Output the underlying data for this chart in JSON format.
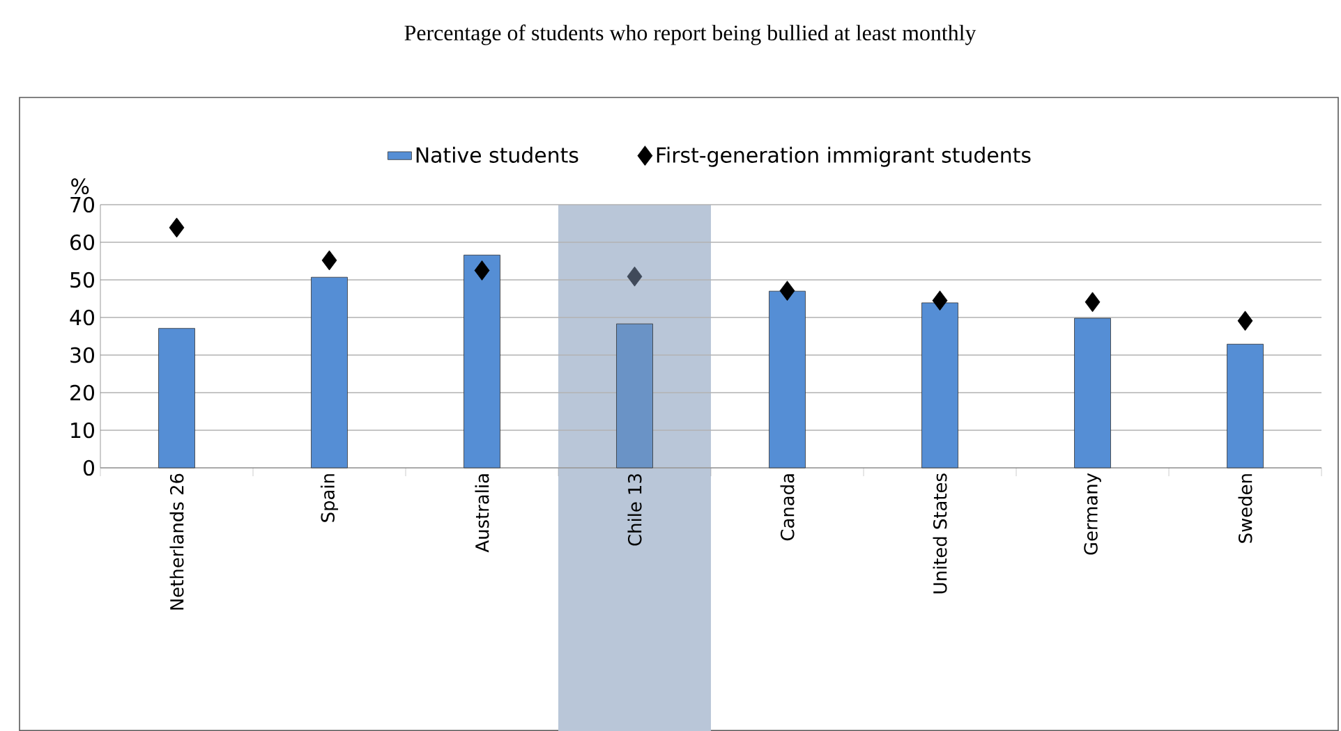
{
  "chart_data": {
    "type": "bar",
    "title": "Percentage of students who report being bullied at least monthly",
    "ylabel": "%",
    "categories": [
      "Netherlands 26",
      "Spain",
      "Australia",
      "Chile 13",
      "Canada",
      "United States",
      "Germany",
      "Sweden"
    ],
    "series": [
      {
        "name": "Native students",
        "color": "#558ed5",
        "colors": [
          "#558ed5",
          "#558ed5",
          "#558ed5",
          "#6a93c6",
          "#558ed5",
          "#558ed5",
          "#558ed5",
          "#558ed5"
        ],
        "values": [
          37.1,
          50.7,
          56.6,
          38.3,
          47,
          43.9,
          39.8,
          32.9
        ]
      },
      {
        "name": "First-generation immigrant students",
        "type": "scatter",
        "marker": "diamond",
        "color": "#000000",
        "colors": [
          "#000000",
          "#000000",
          "#000000",
          "#404a5a",
          "#000000",
          "#000000",
          "#000000",
          "#000000"
        ],
        "values": [
          63.9,
          55.2,
          52.5,
          50.9,
          47.1,
          44.5,
          44.1,
          39.1
        ]
      }
    ],
    "ylim": [
      0,
      70
    ],
    "yticks": [
      0,
      10,
      20,
      30,
      40,
      50,
      60,
      70
    ],
    "grid": "y",
    "legend": "top",
    "bands": [
      {
        "axis": "x",
        "from": "Chile 13",
        "to": "Chile 13",
        "color": "#b9c6d8"
      }
    ]
  }
}
